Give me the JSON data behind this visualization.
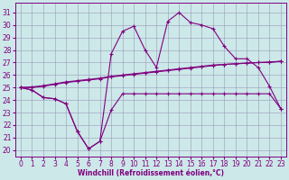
{
  "x": [
    0,
    1,
    2,
    3,
    4,
    5,
    6,
    7,
    8,
    9,
    10,
    11,
    12,
    13,
    14,
    15,
    16,
    17,
    18,
    19,
    20,
    21,
    22,
    23
  ],
  "line_temp": [
    25.0,
    24.8,
    24.2,
    24.1,
    23.7,
    21.5,
    20.1,
    20.7,
    23.2,
    24.5,
    24.5,
    24.5,
    24.5,
    24.5,
    24.5,
    24.5,
    24.5,
    24.5,
    24.5,
    24.5,
    24.5,
    24.5,
    24.5,
    23.3
  ],
  "line_diag1": [
    25.0,
    25.0,
    25.1,
    25.25,
    25.4,
    25.5,
    25.6,
    25.7,
    25.85,
    25.95,
    26.05,
    26.15,
    26.25,
    26.35,
    26.45,
    26.55,
    26.65,
    26.75,
    26.85,
    26.9,
    26.95,
    27.0,
    27.0,
    27.1
  ],
  "line_diag2": [
    25.0,
    25.05,
    25.15,
    25.3,
    25.45,
    25.55,
    25.65,
    25.75,
    25.9,
    26.0,
    26.1,
    26.2,
    26.3,
    26.4,
    26.5,
    26.6,
    26.7,
    26.8,
    26.85,
    26.9,
    26.95,
    27.0,
    27.05,
    27.1
  ],
  "line_wc": [
    25.0,
    24.8,
    24.2,
    24.1,
    23.7,
    21.5,
    20.1,
    20.7,
    27.7,
    29.5,
    29.9,
    28.0,
    26.6,
    30.3,
    31.0,
    30.2,
    30.0,
    29.7,
    28.3,
    27.3,
    27.3,
    26.6,
    25.1,
    23.3
  ],
  "bg_color": "#cce8e8",
  "line_color": "#800080",
  "grid_color": "#9999bb",
  "ylim": [
    19.5,
    31.8
  ],
  "xlim": [
    -0.5,
    23.5
  ],
  "yticks": [
    20,
    21,
    22,
    23,
    24,
    25,
    26,
    27,
    28,
    29,
    30,
    31
  ],
  "xticks": [
    0,
    1,
    2,
    3,
    4,
    5,
    6,
    7,
    8,
    9,
    10,
    11,
    12,
    13,
    14,
    15,
    16,
    17,
    18,
    19,
    20,
    21,
    22,
    23
  ],
  "xlabel": "Windchill (Refroidissement éolien,°C)"
}
